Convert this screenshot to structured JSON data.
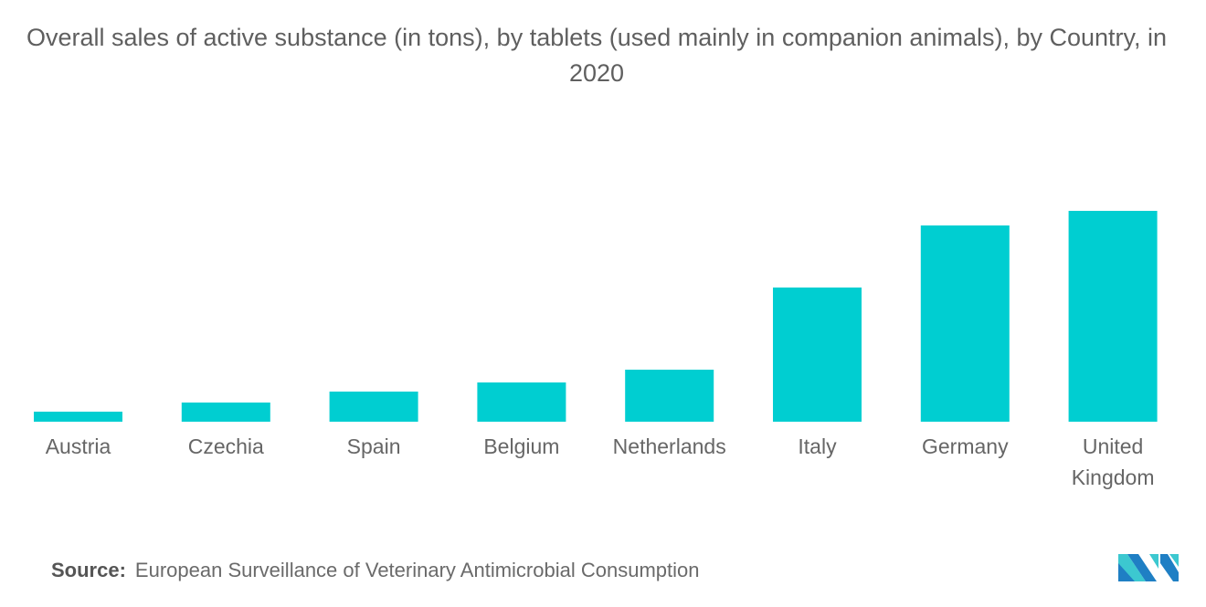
{
  "chart_data": {
    "type": "bar",
    "title": "Overall sales of active substance (in tons), by tablets (used mainly in companion animals), by Country, in 2020",
    "categories": [
      "Austria",
      "Czechia",
      "Spain",
      "Belgium",
      "Netherlands",
      "Italy",
      "Germany",
      "United Kingdom"
    ],
    "values": [
      11,
      21,
      33,
      43,
      57,
      147,
      215,
      231
    ],
    "value_note_unit": "relative (no value axis shown)",
    "xlabel": "",
    "ylabel": "",
    "grid": false,
    "bar_color": "#00ced1"
  },
  "source": {
    "label": "Source:",
    "text": "European Surveillance of Veterinary Antimicrobial Consumption"
  },
  "logo": {
    "name": "mordor-intelligence-logo",
    "colors": [
      "#1f7fc4",
      "#3cc8d0"
    ]
  }
}
